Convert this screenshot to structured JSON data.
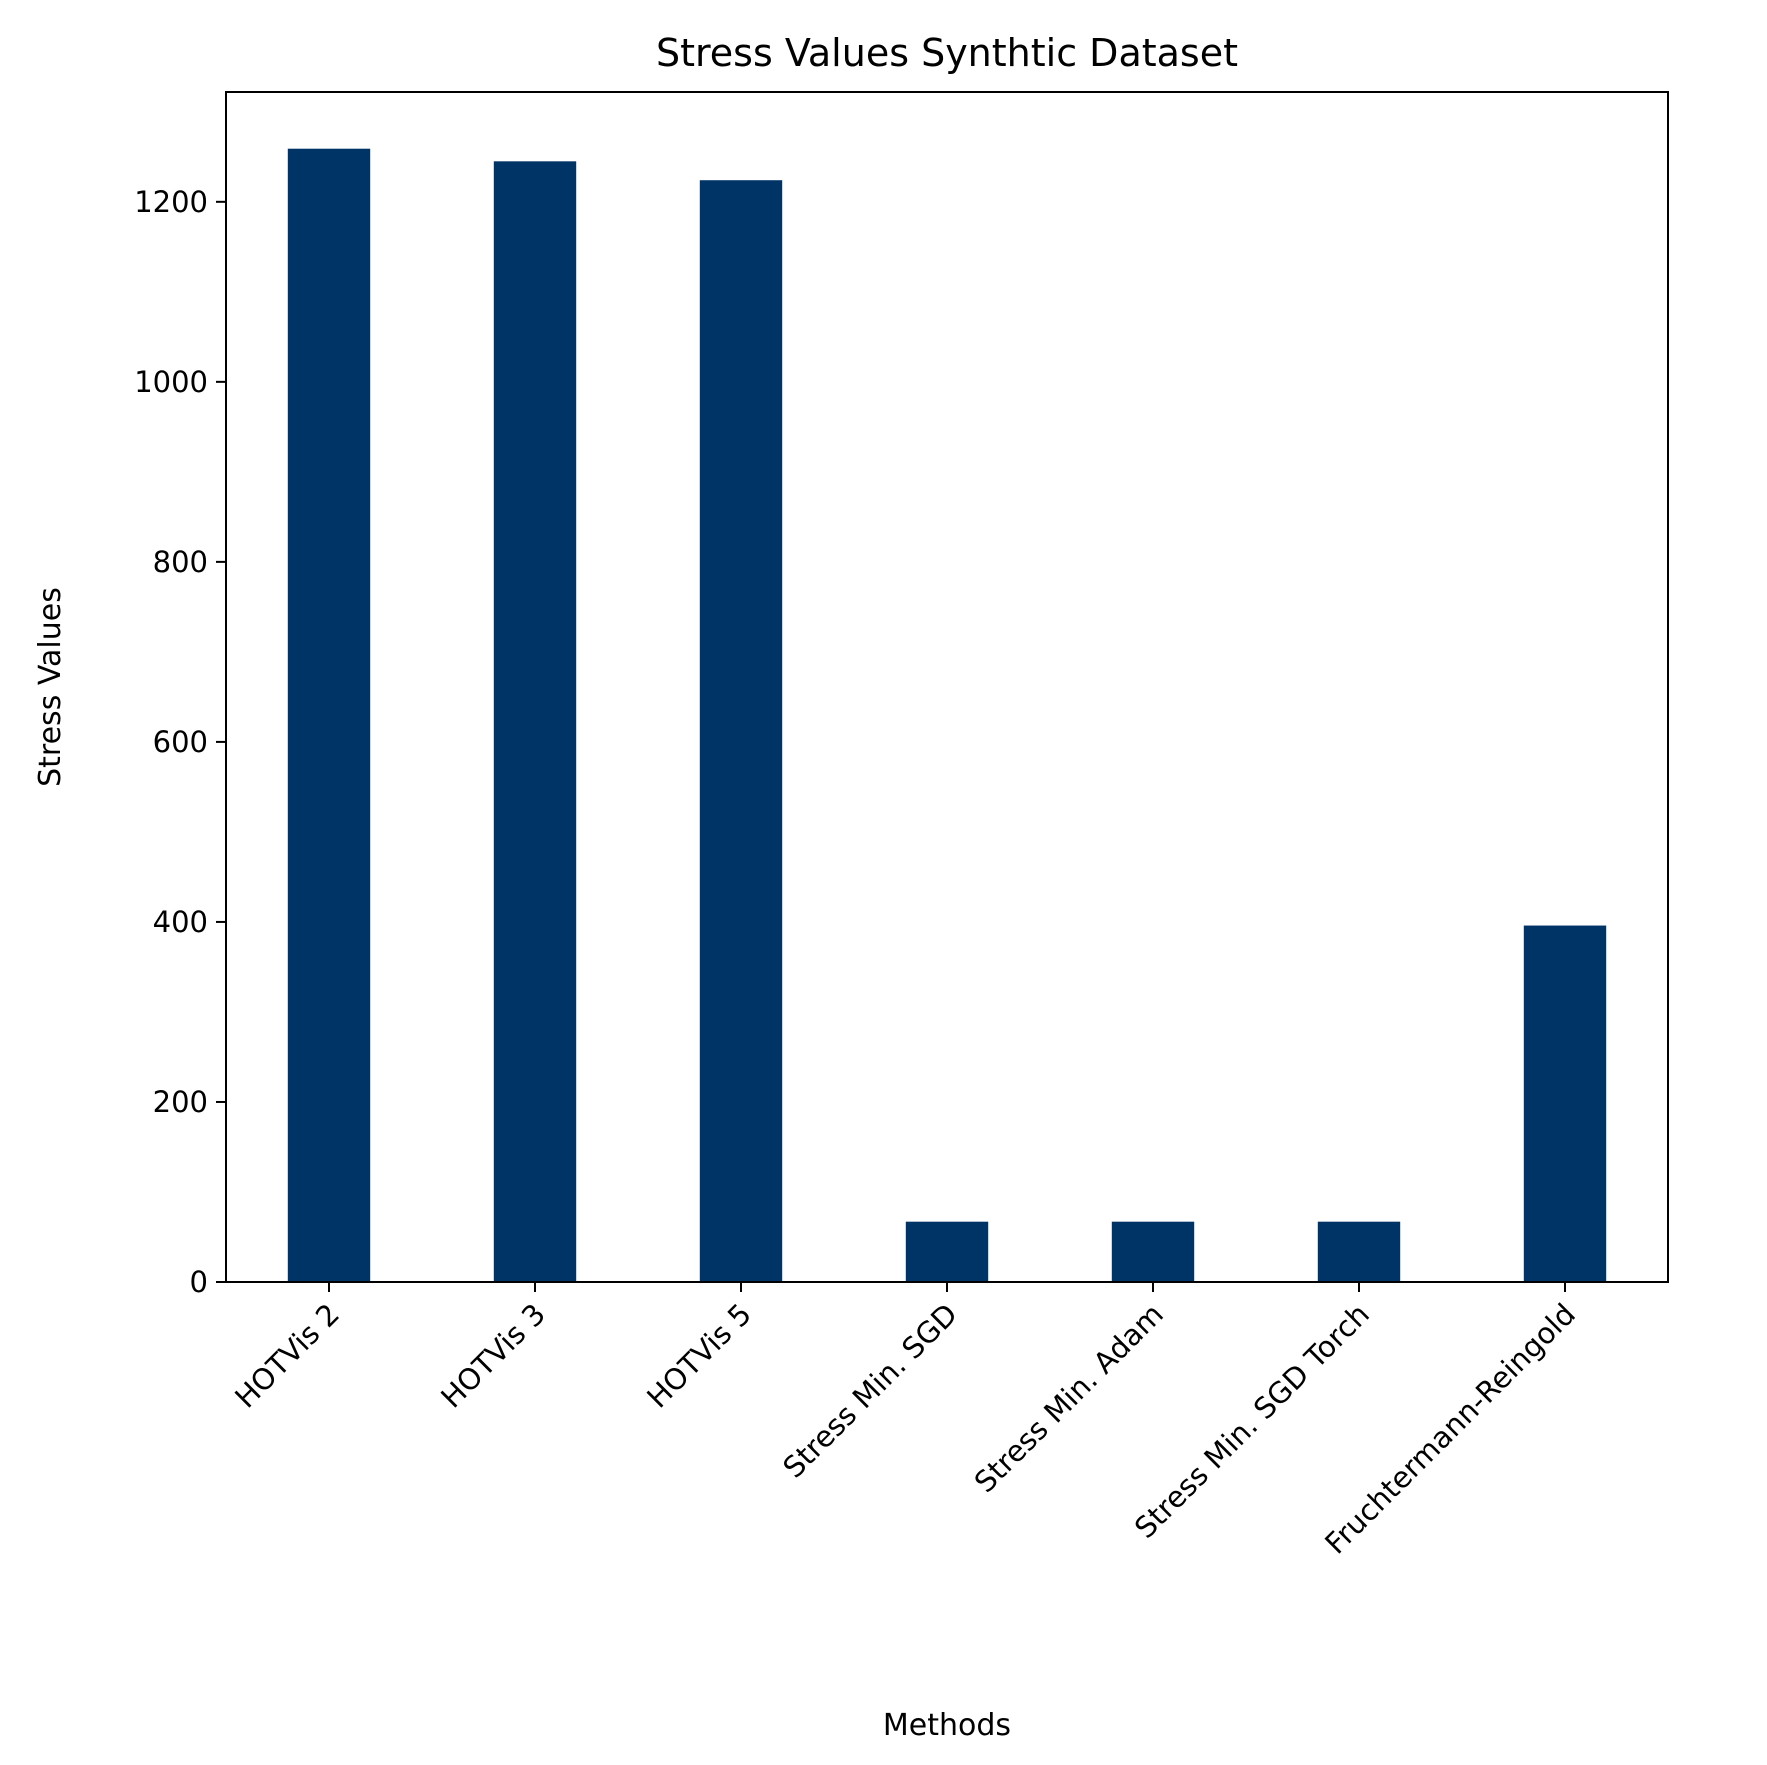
{
  "chart_data": {
    "type": "bar",
    "title": "Stress Values Synthtic Dataset",
    "xlabel": "Methods",
    "ylabel": "Stress Values",
    "categories": [
      "HOTVis 2",
      "HOTVis 3",
      "HOTVis 5",
      "Stress Min. SGD",
      "Stress Min. Adam",
      "Stress Min. SGD Torch",
      "Fruchtermann-Reingold"
    ],
    "values": [
      1259,
      1245,
      1224,
      67,
      67,
      67,
      396
    ],
    "ylim": [
      0,
      1322
    ],
    "yticks": [
      0,
      200,
      400,
      600,
      800,
      1000,
      1200
    ],
    "grid": false,
    "legend": "none",
    "bar_color": "#003366",
    "xtick_rotation_deg": 45
  }
}
